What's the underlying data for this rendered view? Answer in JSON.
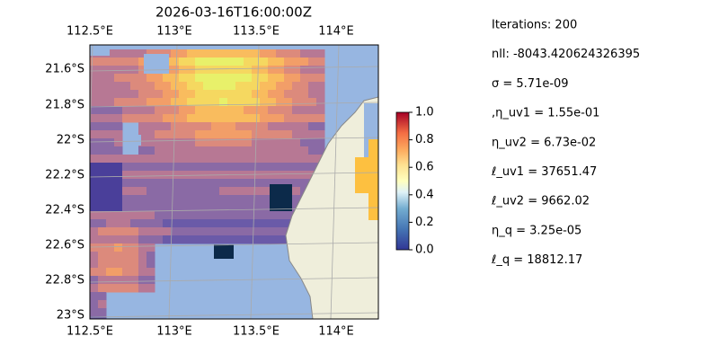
{
  "title": "2026-03-16T16:00:00Z",
  "map": {
    "lon_labels": [
      "112.5°E",
      "113°E",
      "113.5°E",
      "114°E"
    ],
    "lat_labels": [
      "21.6°S",
      "21.8°S",
      "22°S",
      "22.2°S",
      "22.4°S",
      "22.6°S",
      "22.8°S",
      "23°S"
    ]
  },
  "colorbar": {
    "ticks": [
      {
        "value": 0,
        "label": "0.0"
      },
      0.2,
      0.4,
      0.6,
      0.8,
      {
        "value": 1,
        "label": "1.0"
      }
    ],
    "lim": [
      0,
      1
    ]
  },
  "info": [
    "Iterations: 200",
    "nll: -8043.420624326395",
    "σ = 5.71e-09",
    ",η_uv1 = 1.55e-01",
    "η_uv2 = 6.73e-02",
    "ℓ_uv1 = 37651.47",
    "ℓ_uv2 = 9662.02",
    "η_q = 3.25e-05",
    "ℓ_q = 18812.17"
  ]
}
